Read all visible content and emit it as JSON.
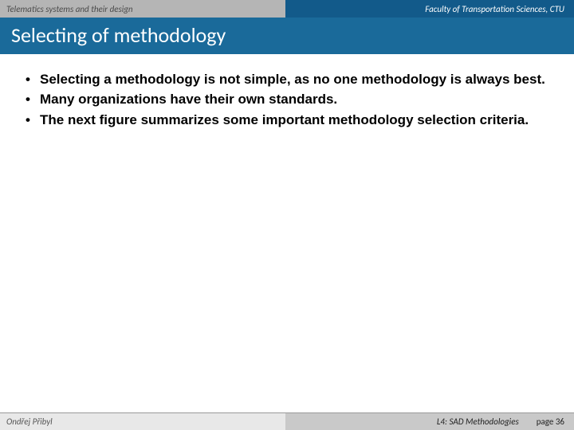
{
  "header": {
    "left": "Telematics systems and their design",
    "right": "Faculty of Transportation Sciences, CTU"
  },
  "title": "Selecting of methodology",
  "bullets": [
    "Selecting a methodology is not simple, as no one methodology is always best.",
    "Many organizations have their own standards.",
    "The next figure summarizes some important methodology selection criteria."
  ],
  "footer": {
    "author": "Ondřej Přibyl",
    "lecture": "L4: SAD Methodologies",
    "page_label": "page 36"
  },
  "colors": {
    "topbar_left_bg": "#b5b5b5",
    "topbar_right_bg": "#125a8a",
    "titlebar_bg": "#1a6a9a",
    "footer_left_bg": "#e8e8e8",
    "footer_right_bg": "#c9c9c9"
  }
}
